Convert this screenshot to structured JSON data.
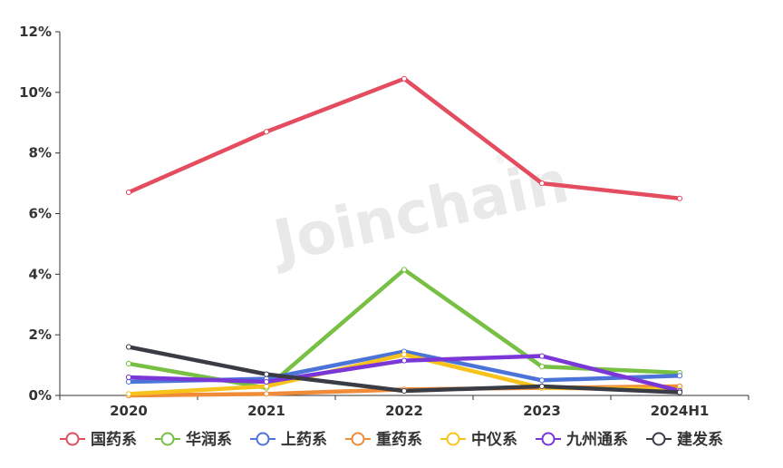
{
  "chart_data": {
    "type": "line",
    "title": "",
    "xlabel": "",
    "ylabel": "",
    "categories": [
      "2020",
      "2021",
      "2022",
      "2023",
      "2024H1"
    ],
    "ylim": [
      0,
      12
    ],
    "yticks": [
      "0%",
      "2%",
      "4%",
      "6%",
      "8%",
      "10%",
      "12%"
    ],
    "y_unit": "%",
    "grid": false,
    "legend_position": "bottom",
    "series": [
      {
        "name": "国药系",
        "color": "#e44d5f",
        "values": [
          6.7,
          8.7,
          10.45,
          7.0,
          6.5
        ]
      },
      {
        "name": "华润系",
        "color": "#77c043",
        "values": [
          1.05,
          0.25,
          4.15,
          0.95,
          0.75
        ]
      },
      {
        "name": "上药系",
        "color": "#4c74d8",
        "values": [
          0.45,
          0.55,
          1.45,
          0.5,
          0.65
        ]
      },
      {
        "name": "重药系",
        "color": "#ef8b39",
        "values": [
          0.0,
          0.05,
          0.2,
          0.25,
          0.3
        ]
      },
      {
        "name": "中仪系",
        "color": "#f8c21c",
        "values": [
          0.05,
          0.3,
          1.35,
          0.25,
          0.2
        ]
      },
      {
        "name": "九州通系",
        "color": "#7a36d6",
        "values": [
          0.6,
          0.45,
          1.15,
          1.3,
          0.15
        ]
      },
      {
        "name": "建发系",
        "color": "#3a3c45",
        "values": [
          1.6,
          0.7,
          0.15,
          0.3,
          0.1
        ]
      }
    ]
  },
  "watermark": {
    "text": "Joinchain",
    "mark": "®"
  }
}
